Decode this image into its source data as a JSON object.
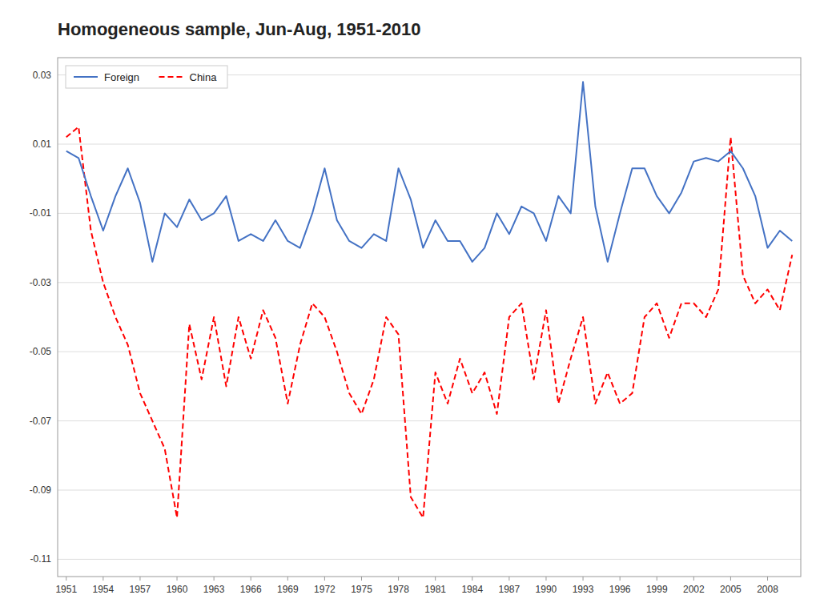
{
  "chart_data": {
    "type": "line",
    "title": "Homogeneous sample, Jun-Aug, 1951-2010",
    "x": [
      1951,
      1952,
      1953,
      1954,
      1955,
      1956,
      1957,
      1958,
      1959,
      1960,
      1961,
      1962,
      1963,
      1964,
      1965,
      1966,
      1967,
      1968,
      1969,
      1970,
      1971,
      1972,
      1973,
      1974,
      1975,
      1976,
      1977,
      1978,
      1979,
      1980,
      1981,
      1982,
      1983,
      1984,
      1985,
      1986,
      1987,
      1988,
      1989,
      1990,
      1991,
      1992,
      1993,
      1994,
      1995,
      1996,
      1997,
      1998,
      1999,
      2000,
      2001,
      2002,
      2003,
      2004,
      2005,
      2006,
      2007,
      2008,
      2009,
      2010
    ],
    "series": [
      {
        "name": "Foreign",
        "color": "#4472C4",
        "line_style": "solid",
        "values": [
          0.008,
          0.006,
          -0.005,
          -0.015,
          -0.005,
          0.003,
          -0.007,
          -0.024,
          -0.01,
          -0.014,
          -0.006,
          -0.012,
          -0.01,
          -0.005,
          -0.018,
          -0.016,
          -0.018,
          -0.012,
          -0.018,
          -0.02,
          -0.01,
          0.003,
          -0.012,
          -0.018,
          -0.02,
          -0.016,
          -0.018,
          0.003,
          -0.006,
          -0.02,
          -0.012,
          -0.018,
          -0.018,
          -0.024,
          -0.02,
          -0.01,
          -0.016,
          -0.008,
          -0.01,
          -0.018,
          -0.005,
          -0.01,
          0.028,
          -0.008,
          -0.024,
          -0.01,
          0.003,
          0.003,
          -0.005,
          -0.01,
          -0.004,
          0.005,
          0.006,
          0.005,
          0.008,
          0.003,
          -0.005,
          -0.02,
          -0.015,
          -0.018
        ]
      },
      {
        "name": "China",
        "color": "#FF0000",
        "line_style": "dashed",
        "values": [
          0.012,
          0.015,
          -0.015,
          -0.03,
          -0.04,
          -0.048,
          -0.062,
          -0.07,
          -0.078,
          -0.098,
          -0.042,
          -0.058,
          -0.04,
          -0.06,
          -0.04,
          -0.052,
          -0.038,
          -0.046,
          -0.065,
          -0.048,
          -0.036,
          -0.04,
          -0.05,
          -0.062,
          -0.068,
          -0.058,
          -0.04,
          -0.045,
          -0.092,
          -0.098,
          -0.056,
          -0.065,
          -0.052,
          -0.062,
          -0.056,
          -0.068,
          -0.04,
          -0.036,
          -0.058,
          -0.038,
          -0.065,
          -0.052,
          -0.04,
          -0.065,
          -0.056,
          -0.065,
          -0.062,
          -0.04,
          -0.036,
          -0.046,
          -0.036,
          -0.036,
          -0.04,
          -0.032,
          0.012,
          -0.028,
          -0.036,
          -0.032,
          -0.038,
          -0.022
        ]
      }
    ],
    "xlim": [
      1950.3,
      2010.7
    ],
    "xticks": [
      1951,
      1954,
      1957,
      1960,
      1963,
      1966,
      1969,
      1972,
      1975,
      1978,
      1981,
      1984,
      1987,
      1990,
      1993,
      1996,
      1999,
      2002,
      2005,
      2008
    ],
    "ylim": [
      -0.115,
      0.035
    ],
    "yticks": [
      0.03,
      0.01,
      -0.01,
      -0.03,
      -0.05,
      -0.07,
      -0.09,
      -0.11
    ],
    "grid": true,
    "legend": "upper left"
  }
}
